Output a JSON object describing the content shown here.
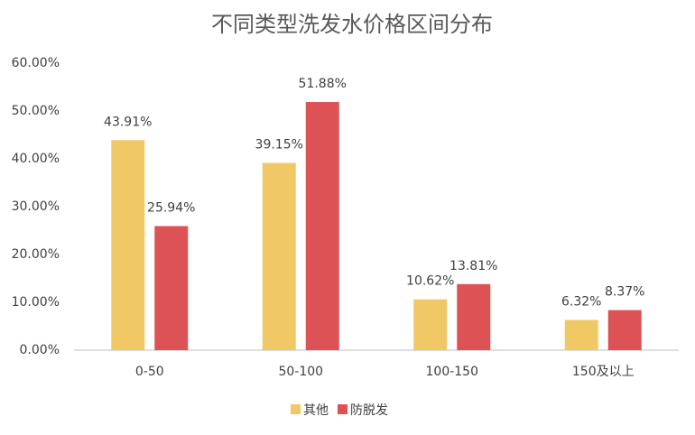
{
  "chart_data": {
    "type": "bar",
    "title": "不同类型洗发水价格区间分布",
    "categories": [
      "0-50",
      "50-100",
      "100-150",
      "150及以上"
    ],
    "series": [
      {
        "name": "其他",
        "color": "#f0c866",
        "values": [
          43.91,
          39.15,
          10.62,
          6.32
        ],
        "value_labels": [
          "43.91%",
          "39.15%",
          "10.62%",
          "6.32%"
        ]
      },
      {
        "name": "防脱发",
        "color": "#dd5254",
        "values": [
          25.94,
          51.88,
          13.81,
          8.37
        ],
        "value_labels": [
          "25.94%",
          "51.88%",
          "13.81%",
          "8.37%"
        ]
      }
    ],
    "ylim": [
      0,
      60
    ],
    "yticks": [
      {
        "value": 0,
        "label": "0.00%"
      },
      {
        "value": 10,
        "label": "10.00%"
      },
      {
        "value": 20,
        "label": "20.00%"
      },
      {
        "value": 30,
        "label": "30.00%"
      },
      {
        "value": 40,
        "label": "40.00%"
      },
      {
        "value": 50,
        "label": "50.00%"
      },
      {
        "value": 60,
        "label": "60.00%"
      }
    ],
    "grid": false,
    "legend": "bottom"
  }
}
